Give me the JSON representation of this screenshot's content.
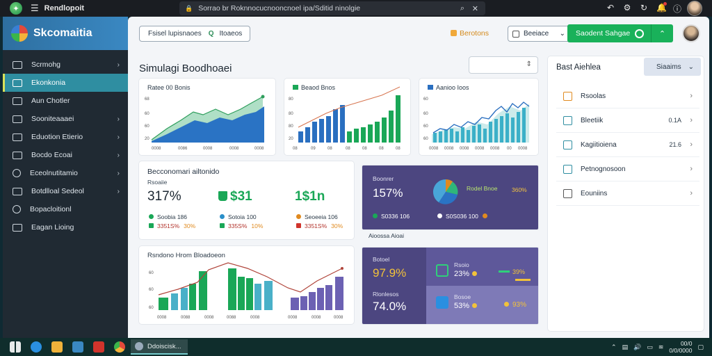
{
  "browser": {
    "app_name": "Rendlopoit",
    "url": "Sorrao br Roknnocucnooncnoel ipa/Sditid ninolgie",
    "icons": [
      "back-icon",
      "settings-icon",
      "refresh-icon",
      "notification-icon",
      "info-icon"
    ]
  },
  "sidebar": {
    "brand": "Skcomaitia",
    "items": [
      {
        "label": "Scrmohg",
        "icon": "grid-icon",
        "chevron": true
      },
      {
        "label": "Ekonkonia",
        "icon": "chart-icon",
        "chevron": false,
        "active": true
      },
      {
        "label": "Aun Chotler",
        "icon": "users-icon",
        "chevron": false
      },
      {
        "label": "Sooniteaaaei",
        "icon": "folder-icon",
        "chevron": true
      },
      {
        "label": "Eduotion Etierio",
        "icon": "book-icon",
        "chevron": true
      },
      {
        "label": "Bocdo Ecoai",
        "icon": "box-icon",
        "chevron": true
      },
      {
        "label": "Eceolnutitamio",
        "icon": "clock-icon",
        "chevron": true
      },
      {
        "label": "Botdlloal Sedeol",
        "icon": "calendar-icon",
        "chevron": true
      },
      {
        "label": "Bopacloitionl",
        "icon": "settings-icon",
        "chevron": false
      },
      {
        "label": "Eagan Lioing",
        "icon": "doc-icon",
        "chevron": false
      }
    ]
  },
  "header": {
    "filter_label": "Fsisel lupisnaoes",
    "filter_extra": "Itoaeos",
    "reports_label": "Berotons",
    "select_label": "Beeiace",
    "cta_label": "Saodent Sahgae"
  },
  "page_title": "Simulagi Boodhoaei",
  "mini_charts": [
    {
      "title": "Ratee 00 Bonis",
      "x_labels": [
        "0008",
        "0086",
        "0008",
        "0008",
        "0008"
      ],
      "y_labels": [
        "68",
        "60",
        "60",
        "20",
        "0"
      ]
    },
    {
      "title": "Beaod Bnos",
      "x_labels": [
        "08",
        "09",
        "08",
        "08",
        "08",
        "08",
        "08"
      ],
      "y_labels": [
        "80",
        "80",
        "80",
        "20",
        "0"
      ]
    },
    {
      "title": "Aanioo Ioos",
      "x_labels": [
        "0008",
        "0008",
        "0008",
        "0008",
        "0008",
        "00",
        "0008"
      ],
      "y_labels": [
        "60",
        "60",
        "60",
        "60",
        "20"
      ]
    }
  ],
  "metric_card": {
    "title": "Becconomari ailtonido",
    "subtitle": "Rsoaiie",
    "m1": "317%",
    "m2": "$31",
    "m3": "1$1n",
    "rows": [
      {
        "a": "Soobia 186",
        "b": "3351S%",
        "b2": "30%"
      },
      {
        "a": "Sotoia 100",
        "b": "335S%",
        "b2": "10%"
      },
      {
        "a": "Seoeeia 106",
        "b": "3351S%",
        "b2": "30%"
      }
    ]
  },
  "pie_card": {
    "label": "Boonrer",
    "value": "157%",
    "legend_label": "Rodel Bnoe",
    "legend_value": "360%",
    "row1": "S0336 106",
    "row2": "S0S036 100",
    "caption": "Aioossa Aioai"
  },
  "bottom_chart": {
    "title": "Rsndono Hrom Bloadoeon",
    "x_labels": [
      "0008",
      "0088",
      "0008",
      "0088",
      "0008",
      "0008",
      "0008",
      "0008"
    ],
    "y_labels": [
      "60",
      "60",
      "60",
      "60"
    ]
  },
  "stats_card": {
    "label1": "Botoel",
    "value1": "97.9%",
    "label2": "Rlonlesos",
    "value2": "74.0%",
    "t1_label": "Rsoio",
    "t1_value": "23%",
    "t2_label": "Bosoe",
    "t2_value": "53%",
    "right1": "39%",
    "right2": "93%"
  },
  "right_panel": {
    "title": "Bast Aiehlea",
    "button": "Siaaims",
    "items": [
      {
        "label": "Rsoolas",
        "value": ""
      },
      {
        "label": "Bleetiik",
        "value": "0.1A"
      },
      {
        "label": "Kagiitioiena",
        "value": "21.6"
      },
      {
        "label": "Petnognosoon",
        "value": ""
      },
      {
        "label": "Eouniins",
        "value": ""
      }
    ]
  },
  "taskbar": {
    "task_label": "Ddoiscisk...",
    "clock_time": "00/0",
    "clock_date": "0/0/0000"
  },
  "colors": {
    "sidebar_bg": "#202a33",
    "active_item": "#2f8ea1",
    "brand_bar": "#3a88c2",
    "cta_green": "#19b15a",
    "purple_card": "#4c4680",
    "accent_blue": "#2a6fc0",
    "accent_green": "#1aa757"
  }
}
